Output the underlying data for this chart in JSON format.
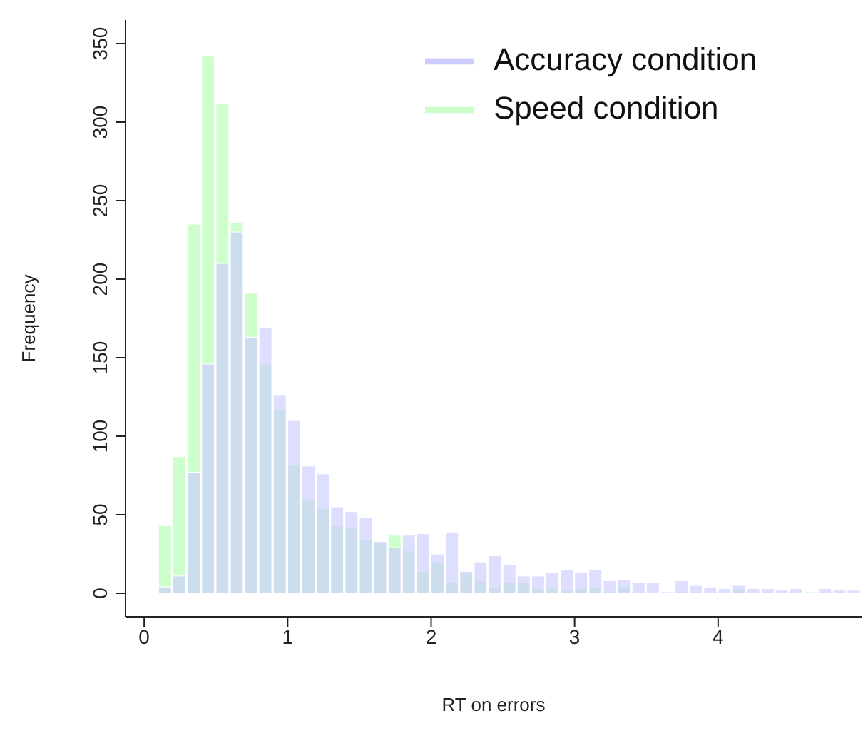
{
  "chart_data": {
    "type": "histogram",
    "xlabel": "RT on errors",
    "ylabel": "Frequency",
    "bins": [
      0.1,
      0.2,
      0.3,
      0.4,
      0.5,
      0.6,
      0.7,
      0.8,
      0.9,
      1.0,
      1.1,
      1.2,
      1.3,
      1.4,
      1.5,
      1.6,
      1.7,
      1.8,
      1.9,
      2.0,
      2.1,
      2.2,
      2.3,
      2.4,
      2.5,
      2.6,
      2.7,
      2.8,
      2.9,
      3.0,
      3.1,
      3.2,
      3.3,
      3.4,
      3.5,
      3.6,
      3.7,
      3.8,
      3.9,
      4.0,
      4.1,
      4.2,
      4.3,
      4.4,
      4.5,
      4.6,
      4.7,
      4.8,
      4.9,
      5.0
    ],
    "series": [
      {
        "name": "Accuracy condition",
        "color": "#ccccff",
        "values": [
          4,
          11,
          77,
          146,
          210,
          230,
          163,
          169,
          126,
          110,
          81,
          76,
          55,
          52,
          48,
          33,
          29,
          37,
          38,
          25,
          39,
          14,
          20,
          24,
          18,
          11,
          11,
          13,
          15,
          13,
          15,
          8,
          9,
          7,
          7,
          1,
          8,
          5,
          4,
          3,
          5,
          3,
          3,
          2,
          3,
          0,
          3,
          2,
          2
        ]
      },
      {
        "name": "Speed condition",
        "color": "#ccffcc",
        "values": [
          43,
          87,
          235,
          342,
          312,
          236,
          191,
          146,
          117,
          82,
          60,
          54,
          43,
          42,
          34,
          32,
          37,
          27,
          14,
          20,
          7,
          13,
          8,
          4,
          7,
          7,
          3,
          3,
          2,
          3,
          4,
          1,
          4,
          0,
          0,
          0,
          1,
          0,
          0,
          0,
          2,
          0,
          0,
          0,
          0,
          1,
          0,
          0,
          0
        ]
      }
    ],
    "xlim": [
      -0.13,
      5.0
    ],
    "xticks": [
      0,
      1,
      2,
      3,
      4
    ],
    "ylim": [
      -15,
      365
    ],
    "yticks": [
      0,
      50,
      100,
      150,
      200,
      250,
      300,
      350
    ],
    "legend": "top right",
    "grid": false
  }
}
